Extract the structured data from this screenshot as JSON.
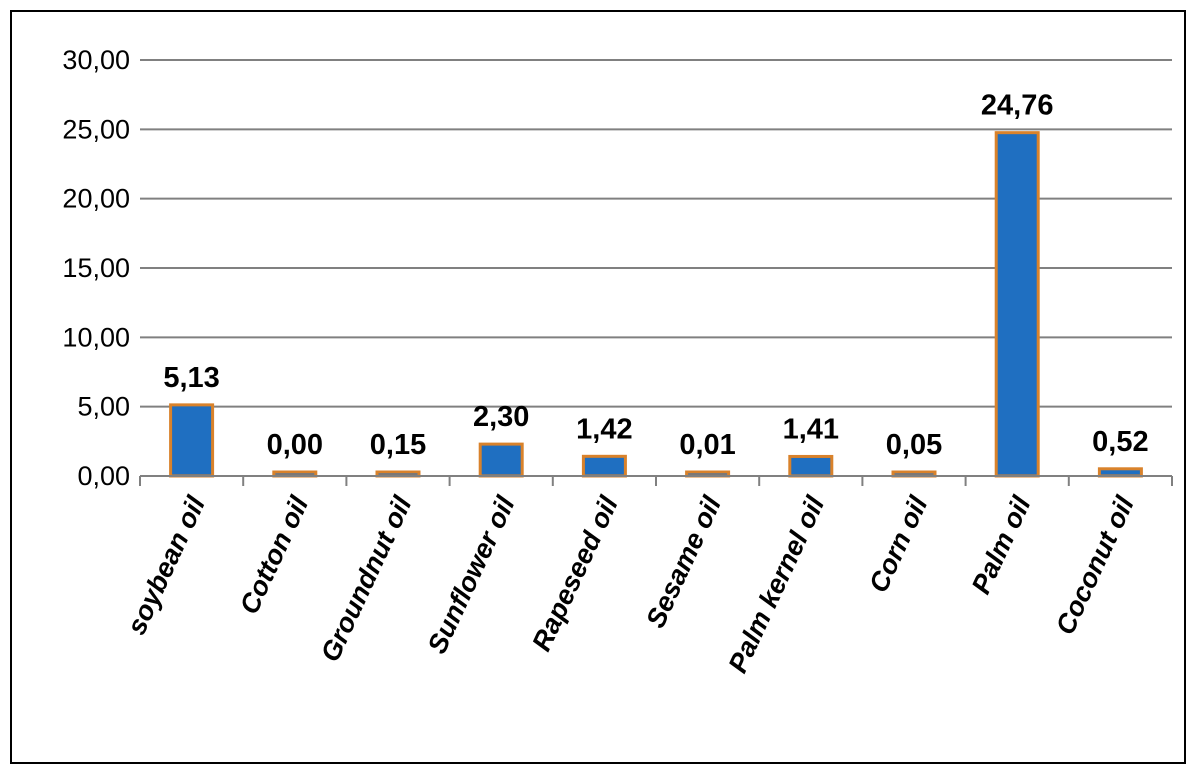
{
  "chart_data": {
    "type": "bar",
    "categories": [
      "soybean oil",
      "Cotton oil",
      "Groundnut oil",
      "Sunflower oil",
      "Rapeseed oil",
      "Sesame oil",
      "Palm kernel oil",
      "Corn oil",
      "Palm oil",
      "Coconut oil"
    ],
    "values": [
      5.13,
      0.0,
      0.15,
      2.3,
      1.42,
      0.01,
      1.41,
      0.05,
      24.76,
      0.52
    ],
    "value_labels": [
      "5,13",
      "0,00",
      "0,15",
      "2,30",
      "1,42",
      "0,01",
      "1,41",
      "0,05",
      "24,76",
      "0,52"
    ],
    "y_ticks": [
      "0,00",
      "5,00",
      "10,00",
      "15,00",
      "20,00",
      "25,00",
      "30,00"
    ],
    "ylim": [
      0,
      30
    ],
    "grid": true,
    "legend": "none",
    "colors": {
      "bar_fill": "#1f6fc1",
      "bar_edge": "#d9822b",
      "grid": "#808080"
    }
  }
}
